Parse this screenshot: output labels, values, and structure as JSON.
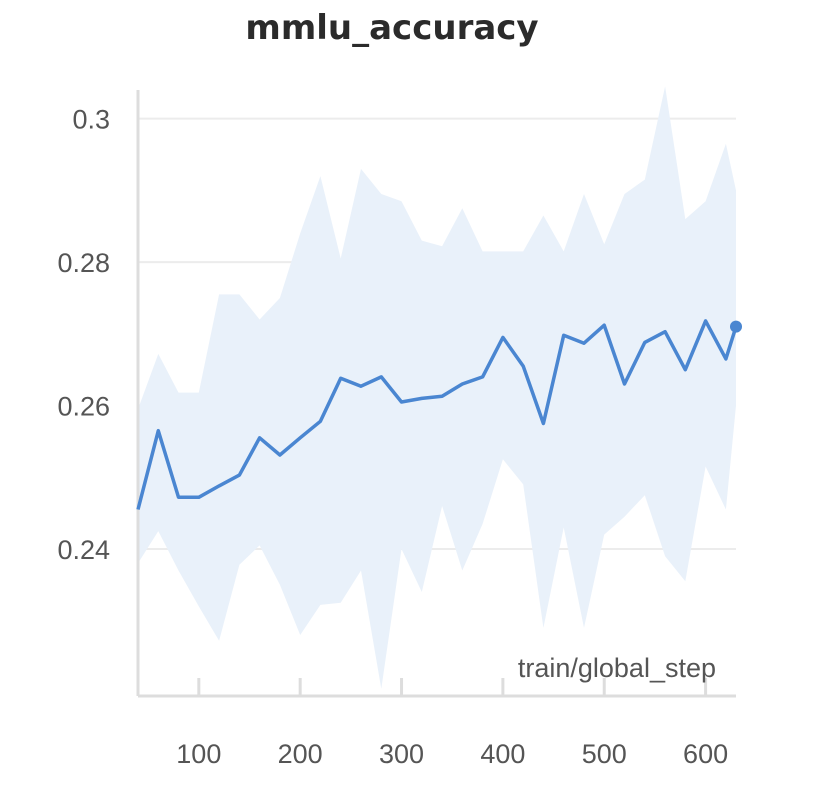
{
  "chart_data": {
    "type": "line",
    "title": "mmlu_accuracy",
    "xlabel": "train/global_step",
    "ylabel": "",
    "xlim": [
      40,
      630
    ],
    "ylim": [
      0.2195,
      0.304
    ],
    "x_ticks": [
      100,
      200,
      300,
      400,
      500,
      600
    ],
    "y_ticks": [
      0.24,
      0.26,
      0.28,
      0.3
    ],
    "y_tick_labels": [
      "0.24",
      "0.26",
      "0.28",
      "0.3"
    ],
    "grid": true,
    "legend": "none",
    "series": [
      {
        "color": "#4a86d1",
        "band_color": "#e9f1fa",
        "x": [
          40,
          60,
          80,
          100,
          120,
          140,
          160,
          180,
          200,
          220,
          240,
          260,
          280,
          300,
          320,
          340,
          360,
          380,
          400,
          420,
          440,
          460,
          480,
          500,
          520,
          540,
          560,
          580,
          600,
          620,
          630
        ],
        "y": [
          0.2455,
          0.2565,
          0.2472,
          0.2472,
          0.2488,
          0.2503,
          0.2555,
          0.2531,
          0.2555,
          0.2578,
          0.2638,
          0.2627,
          0.264,
          0.2605,
          0.261,
          0.2613,
          0.263,
          0.264,
          0.2695,
          0.2655,
          0.2575,
          0.2698,
          0.2687,
          0.2712,
          0.263,
          0.2688,
          0.2703,
          0.265,
          0.2718,
          0.2665,
          0.271
        ],
        "upper": [
          0.2595,
          0.2672,
          0.2618,
          0.2618,
          0.2755,
          0.2755,
          0.272,
          0.275,
          0.284,
          0.292,
          0.2805,
          0.293,
          0.2895,
          0.2885,
          0.283,
          0.2822,
          0.2875,
          0.2815,
          0.2815,
          0.2815,
          0.2865,
          0.2815,
          0.2895,
          0.2825,
          0.2895,
          0.2915,
          0.3045,
          0.286,
          0.2885,
          0.2965,
          0.29
        ],
        "lower": [
          0.238,
          0.2425,
          0.237,
          0.232,
          0.2272,
          0.2378,
          0.2405,
          0.235,
          0.228,
          0.2322,
          0.2325,
          0.237,
          0.2205,
          0.24,
          0.234,
          0.246,
          0.237,
          0.2435,
          0.2525,
          0.249,
          0.229,
          0.243,
          0.229,
          0.242,
          0.2445,
          0.2475,
          0.239,
          0.2355,
          0.2515,
          0.2455,
          0.26
        ]
      }
    ]
  }
}
